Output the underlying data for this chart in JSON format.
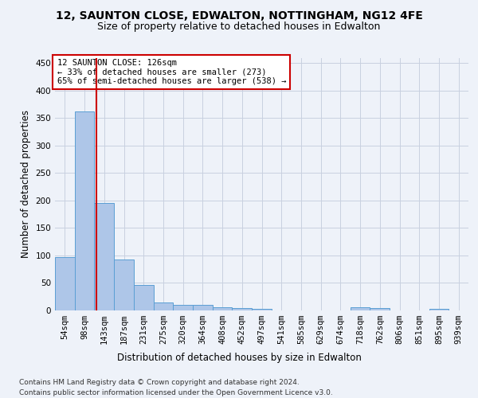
{
  "title1": "12, SAUNTON CLOSE, EDWALTON, NOTTINGHAM, NG12 4FE",
  "title2": "Size of property relative to detached houses in Edwalton",
  "xlabel": "Distribution of detached houses by size in Edwalton",
  "ylabel": "Number of detached properties",
  "footnote1": "Contains HM Land Registry data © Crown copyright and database right 2024.",
  "footnote2": "Contains public sector information licensed under the Open Government Licence v3.0.",
  "bin_labels": [
    "54sqm",
    "98sqm",
    "143sqm",
    "187sqm",
    "231sqm",
    "275sqm",
    "320sqm",
    "364sqm",
    "408sqm",
    "452sqm",
    "497sqm",
    "541sqm",
    "585sqm",
    "629sqm",
    "674sqm",
    "718sqm",
    "762sqm",
    "806sqm",
    "851sqm",
    "895sqm",
    "939sqm"
  ],
  "bar_values": [
    97,
    362,
    195,
    93,
    46,
    15,
    10,
    10,
    6,
    5,
    3,
    0,
    0,
    0,
    0,
    6,
    5,
    0,
    0,
    3,
    0
  ],
  "bar_color": "#aec6e8",
  "bar_edge_color": "#5a9fd4",
  "bin_edges_numeric": [
    54,
    98,
    143,
    187,
    231,
    275,
    320,
    364,
    408,
    452,
    497,
    541,
    585,
    629,
    674,
    718,
    762,
    806,
    851,
    895,
    939
  ],
  "property_size": 126,
  "property_label": "12 SAUNTON CLOSE: 126sqm",
  "annotation_line1": "← 33% of detached houses are smaller (273)",
  "annotation_line2": "65% of semi-detached houses are larger (538) →",
  "red_line_color": "#cc0000",
  "annotation_box_edge": "#cc0000",
  "ylim": [
    0,
    460
  ],
  "yticks": [
    0,
    50,
    100,
    150,
    200,
    250,
    300,
    350,
    400,
    450
  ],
  "background_color": "#eef2f9",
  "plot_background": "#eef2f9",
  "grid_color": "#c8d0e0",
  "title_fontsize": 10,
  "subtitle_fontsize": 9,
  "axis_label_fontsize": 8.5,
  "tick_fontsize": 7.5,
  "annotation_fontsize": 7.5,
  "footnote_fontsize": 6.5
}
